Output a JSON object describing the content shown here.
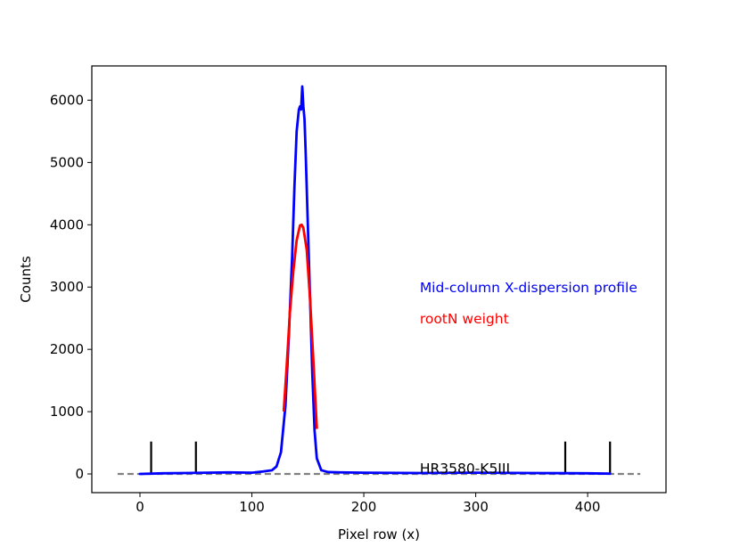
{
  "chart_data": {
    "type": "line",
    "xlabel": "Pixel row (x)",
    "ylabel": "Counts",
    "xlim": [
      -43,
      470
    ],
    "ylim": [
      -300,
      6550
    ],
    "xticks": [
      0,
      100,
      200,
      300,
      400
    ],
    "yticks": [
      0,
      1000,
      2000,
      3000,
      4000,
      5000,
      6000
    ],
    "grid": false,
    "series": [
      {
        "name": "Mid-column X-dispersion profile",
        "color": "#0000ff",
        "x": [
          0,
          20,
          40,
          60,
          80,
          100,
          110,
          118,
          122,
          126,
          130,
          133,
          136,
          138,
          140,
          142,
          143,
          144,
          145,
          146,
          147,
          148,
          150,
          152,
          154,
          156,
          158,
          162,
          168,
          180,
          200,
          250,
          300,
          350,
          400,
          420
        ],
        "y": [
          0,
          10,
          15,
          20,
          25,
          20,
          40,
          60,
          120,
          350,
          1100,
          2200,
          3500,
          4600,
          5500,
          5850,
          5900,
          5850,
          6220,
          5900,
          5700,
          5200,
          4000,
          2800,
          1600,
          700,
          250,
          60,
          30,
          25,
          20,
          15,
          20,
          15,
          10,
          5
        ]
      },
      {
        "name": "rootN weight",
        "color": "#ff0000",
        "x": [
          128.5,
          131,
          134,
          137,
          140,
          143,
          144.5,
          146,
          149,
          152,
          155,
          158
        ],
        "y": [
          1020,
          1700,
          2600,
          3250,
          3750,
          3990,
          4000,
          3950,
          3600,
          2800,
          1800,
          740
        ]
      }
    ],
    "baseline": {
      "y": 0,
      "x_range": [
        -20,
        447
      ],
      "color": "#808080",
      "style": "dashed"
    },
    "markers": {
      "x": [
        10,
        50,
        380,
        420
      ],
      "y_range": [
        0,
        520
      ],
      "color": "#000000"
    },
    "annotations": [
      {
        "text": "Mid-column X-dispersion profile",
        "x": 250,
        "y": 3000,
        "color": "#0000ff"
      },
      {
        "text": "rootN weight",
        "x": 250,
        "y": 2500,
        "color": "#ff0000"
      },
      {
        "text": "HR3580-K5III",
        "x": 250,
        "y": 100,
        "color": "#000000"
      }
    ]
  }
}
